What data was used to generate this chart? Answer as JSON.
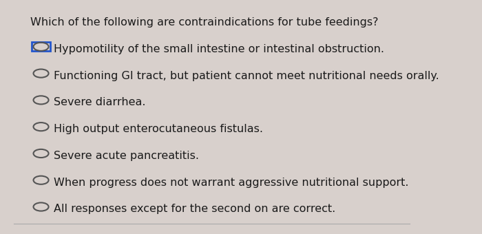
{
  "question": "Which of the following are contraindications for tube feedings?",
  "options": [
    "Hypomotility of the small intestine or intestinal obstruction.",
    "Functioning GI tract, but patient cannot meet nutritional needs orally.",
    "Severe diarrhea.",
    "High output enterocutaneous fistulas.",
    "Severe acute pancreatitis.",
    "When progress does not warrant aggressive nutritional support.",
    "All responses except for the second on are correct."
  ],
  "selected_index": 0,
  "background_color": "#d8d0cc",
  "text_color": "#1a1a1a",
  "question_fontsize": 11.5,
  "option_fontsize": 11.5,
  "circle_color": "#555555",
  "selected_box_color": "#2255cc",
  "line_color": "#aaaaaa"
}
